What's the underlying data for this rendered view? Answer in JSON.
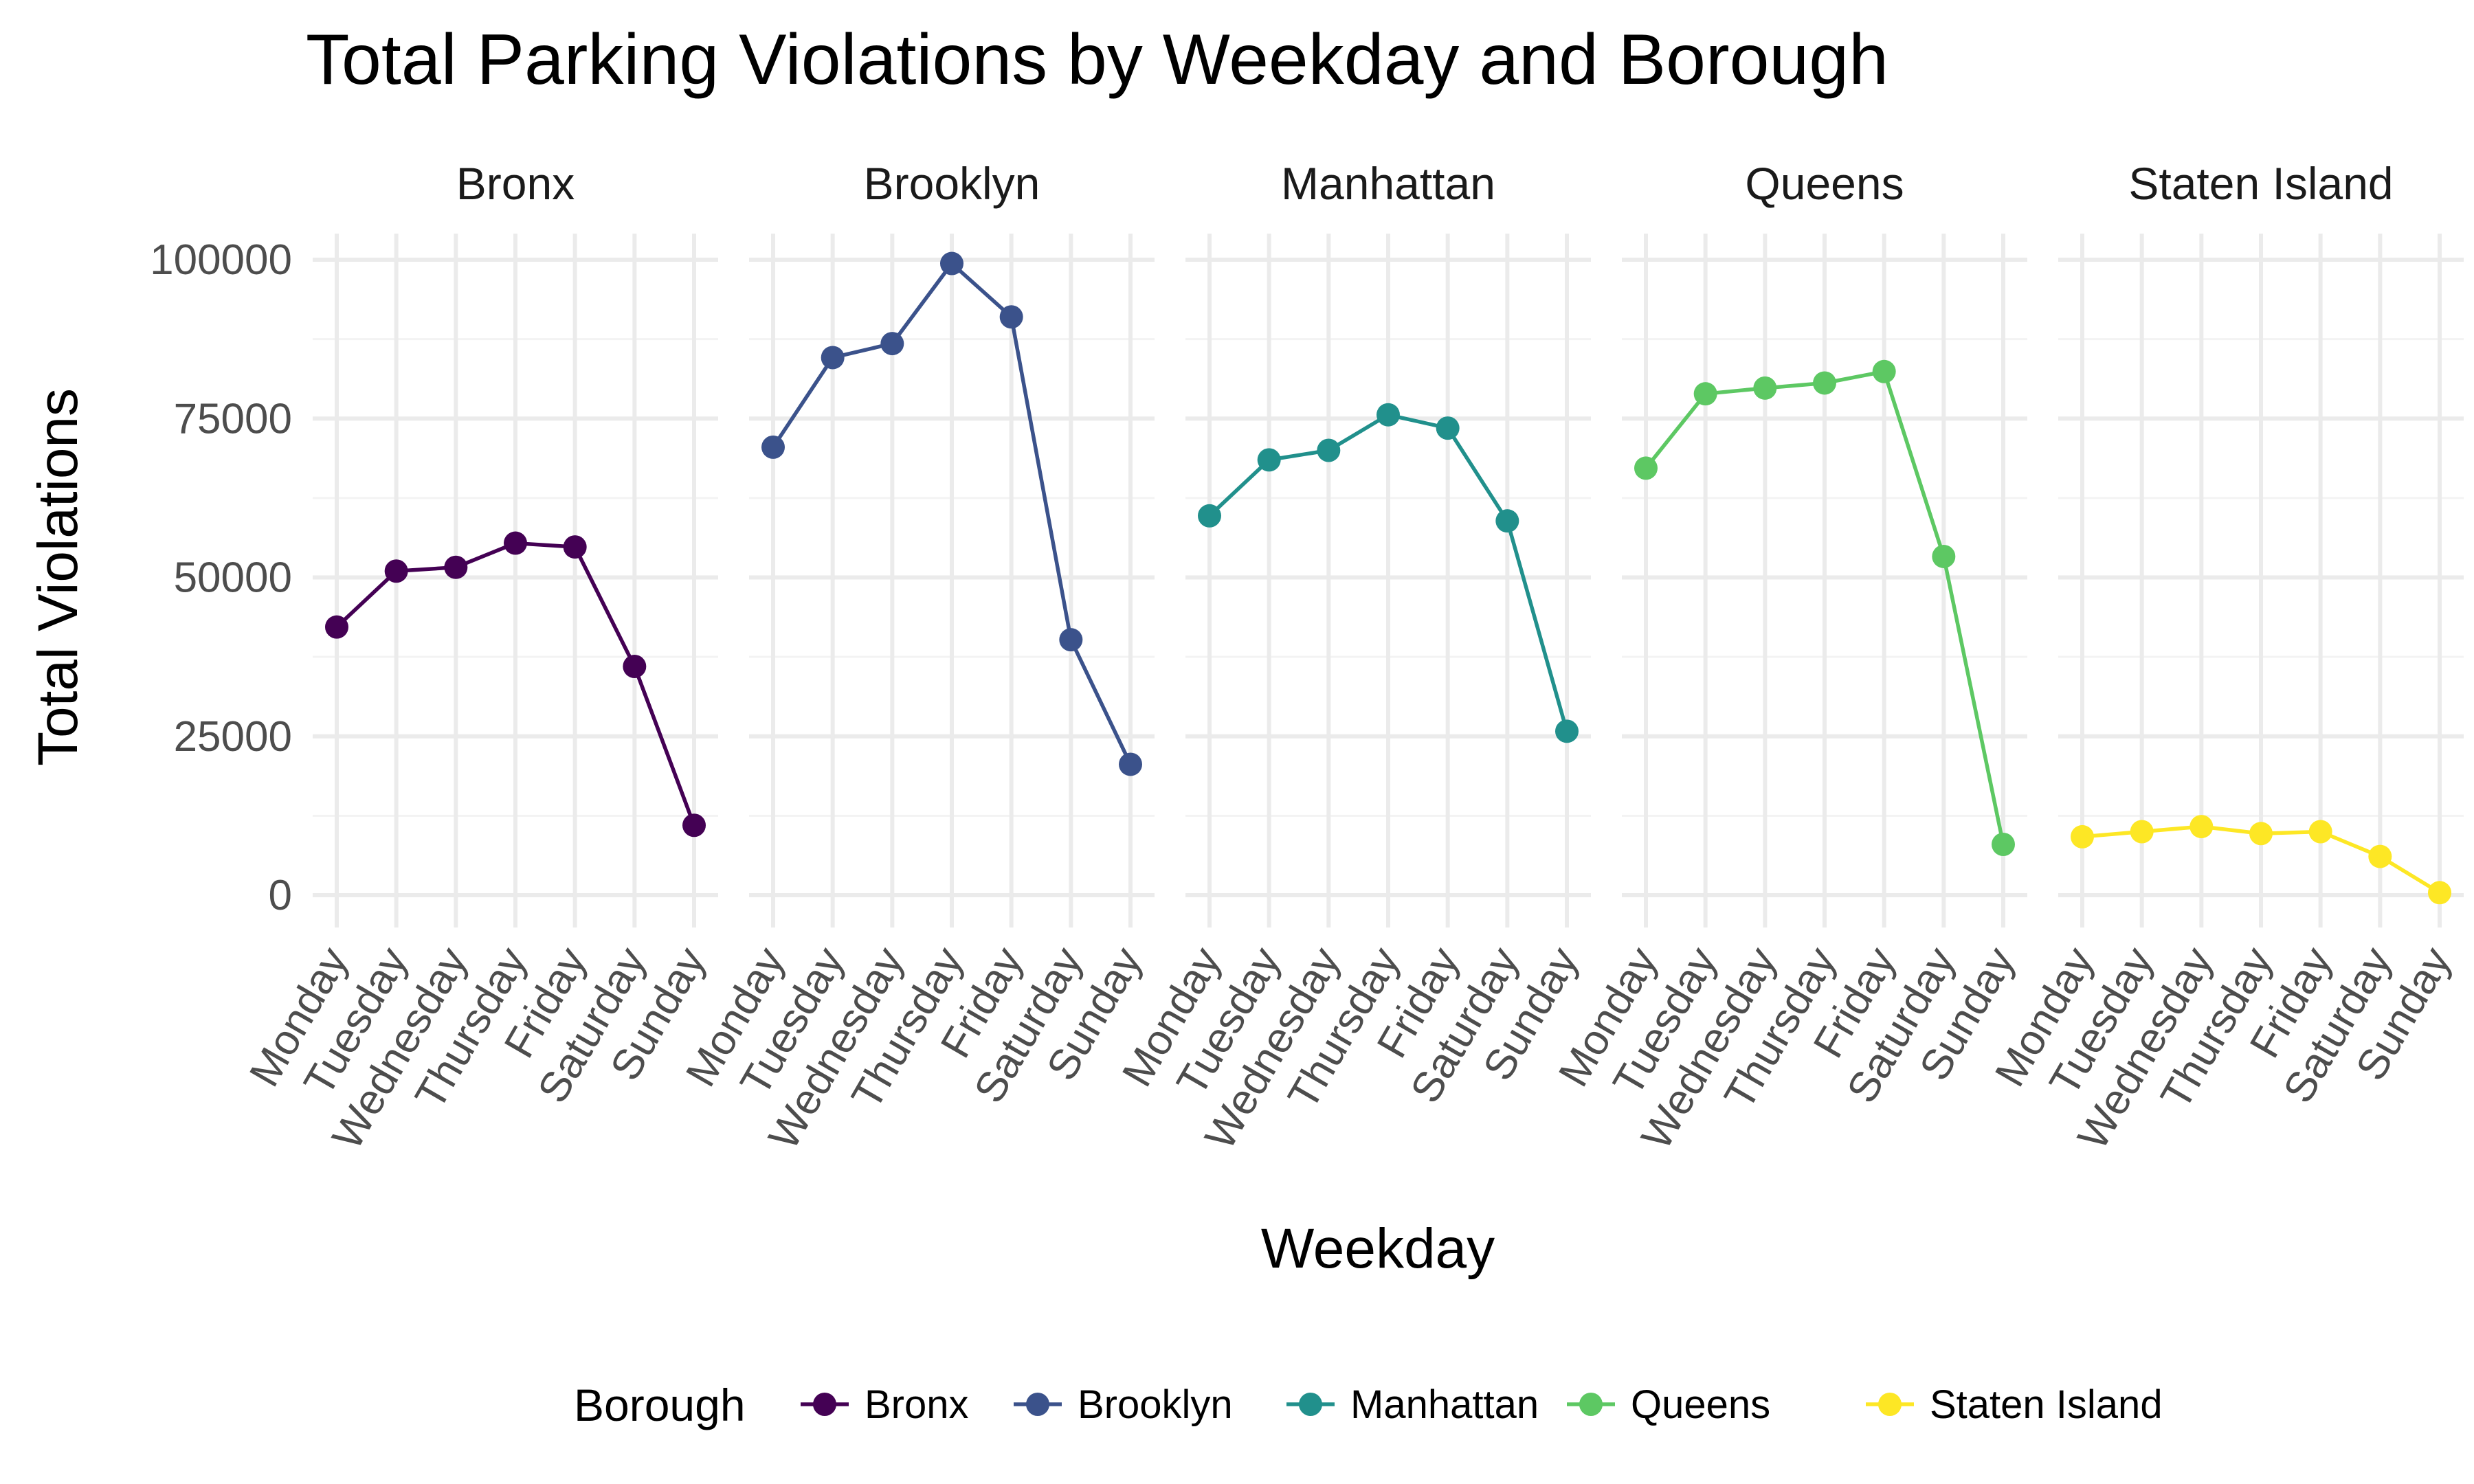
{
  "chart_data": {
    "type": "line",
    "title": "Total Parking Violations by Weekday and Borough",
    "xlabel": "Weekday",
    "ylabel": "Total Violations",
    "categories": [
      "Monday",
      "Tuesday",
      "Wednesday",
      "Thursday",
      "Friday",
      "Saturday",
      "Sunday"
    ],
    "y_ticks": [
      "0",
      "25000",
      "50000",
      "75000",
      "100000"
    ],
    "ylim": [
      0,
      100000
    ],
    "facet_by": "Borough",
    "legend": {
      "title": "Borough",
      "position": "bottom"
    },
    "grid": true,
    "series": [
      {
        "name": "Bronx",
        "color": "#440154",
        "values": [
          42200,
          51000,
          51600,
          55400,
          54800,
          36000,
          11000
        ]
      },
      {
        "name": "Brooklyn",
        "color": "#3B528B",
        "values": [
          70500,
          84600,
          86800,
          99400,
          91000,
          40200,
          20600
        ]
      },
      {
        "name": "Manhattan",
        "color": "#21908C",
        "values": [
          59700,
          68500,
          70000,
          75600,
          73500,
          58900,
          25800
        ]
      },
      {
        "name": "Queens",
        "color": "#5DC863",
        "values": [
          67200,
          78900,
          79800,
          80600,
          82400,
          53300,
          8000
        ]
      },
      {
        "name": "Staten Island",
        "color": "#FDE725",
        "values": [
          9200,
          10000,
          10800,
          9700,
          10000,
          6100,
          400
        ]
      }
    ]
  }
}
